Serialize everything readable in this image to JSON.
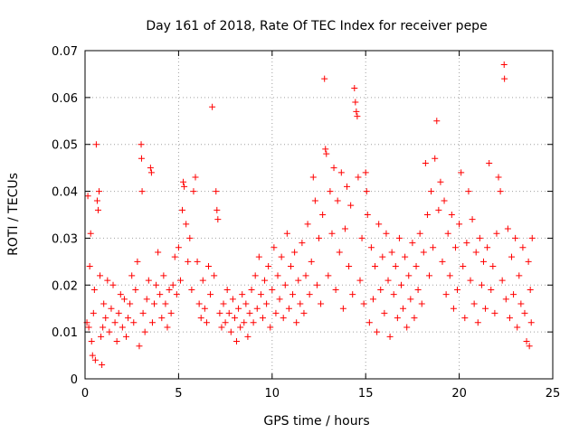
{
  "chart_data": {
    "type": "scatter",
    "title": "Day 161 of 2018, Rate Of TEC Index for receiver pepe",
    "xlabel": "GPS time / hours",
    "ylabel": "ROTI / TECUs",
    "xlim": [
      0,
      25
    ],
    "ylim": [
      0,
      0.07
    ],
    "xticks": [
      0,
      5,
      10,
      15,
      20,
      25
    ],
    "xtick_labels": [
      "0",
      "5",
      "10",
      "15",
      "20",
      "25"
    ],
    "yticks": [
      0,
      0.01,
      0.02,
      0.03,
      0.04,
      0.05,
      0.06,
      0.07
    ],
    "ytick_labels": [
      "0",
      "0.01",
      "0.02",
      "0.03",
      "0.04",
      "0.05",
      "0.06",
      "0.07"
    ],
    "grid": true,
    "marker": "+",
    "series": [
      {
        "name": "pepe",
        "color": "#ff0000",
        "marker": "+",
        "points": [
          [
            0.1,
            0.012
          ],
          [
            0.15,
            0.039
          ],
          [
            0.2,
            0.011
          ],
          [
            0.25,
            0.024
          ],
          [
            0.3,
            0.031
          ],
          [
            0.35,
            0.008
          ],
          [
            0.4,
            0.005
          ],
          [
            0.45,
            0.014
          ],
          [
            0.5,
            0.019
          ],
          [
            0.55,
            0.004
          ],
          [
            0.6,
            0.05
          ],
          [
            0.65,
            0.038
          ],
          [
            0.7,
            0.036
          ],
          [
            0.75,
            0.04
          ],
          [
            0.8,
            0.022
          ],
          [
            0.85,
            0.009
          ],
          [
            0.9,
            0.003
          ],
          [
            0.95,
            0.011
          ],
          [
            1.0,
            0.016
          ],
          [
            1.1,
            0.013
          ],
          [
            1.2,
            0.021
          ],
          [
            1.3,
            0.01
          ],
          [
            1.4,
            0.015
          ],
          [
            1.5,
            0.02
          ],
          [
            1.6,
            0.012
          ],
          [
            1.7,
            0.008
          ],
          [
            1.8,
            0.014
          ],
          [
            1.9,
            0.018
          ],
          [
            2.0,
            0.011
          ],
          [
            2.1,
            0.017
          ],
          [
            2.2,
            0.009
          ],
          [
            2.3,
            0.013
          ],
          [
            2.4,
            0.016
          ],
          [
            2.5,
            0.022
          ],
          [
            2.6,
            0.012
          ],
          [
            2.7,
            0.019
          ],
          [
            2.8,
            0.025
          ],
          [
            2.9,
            0.007
          ],
          [
            3.0,
            0.05
          ],
          [
            3.02,
            0.047
          ],
          [
            3.05,
            0.04
          ],
          [
            3.1,
            0.014
          ],
          [
            3.2,
            0.01
          ],
          [
            3.3,
            0.017
          ],
          [
            3.4,
            0.021
          ],
          [
            3.5,
            0.045
          ],
          [
            3.55,
            0.044
          ],
          [
            3.6,
            0.012
          ],
          [
            3.7,
            0.016
          ],
          [
            3.8,
            0.02
          ],
          [
            3.9,
            0.027
          ],
          [
            4.0,
            0.018
          ],
          [
            4.1,
            0.013
          ],
          [
            4.2,
            0.022
          ],
          [
            4.3,
            0.016
          ],
          [
            4.4,
            0.011
          ],
          [
            4.5,
            0.019
          ],
          [
            4.6,
            0.014
          ],
          [
            4.7,
            0.02
          ],
          [
            4.8,
            0.026
          ],
          [
            4.9,
            0.018
          ],
          [
            5.0,
            0.028
          ],
          [
            5.1,
            0.021
          ],
          [
            5.2,
            0.036
          ],
          [
            5.25,
            0.042
          ],
          [
            5.3,
            0.041
          ],
          [
            5.4,
            0.033
          ],
          [
            5.5,
            0.025
          ],
          [
            5.6,
            0.03
          ],
          [
            5.7,
            0.019
          ],
          [
            5.8,
            0.04
          ],
          [
            5.9,
            0.043
          ],
          [
            6.0,
            0.025
          ],
          [
            6.1,
            0.016
          ],
          [
            6.2,
            0.013
          ],
          [
            6.3,
            0.021
          ],
          [
            6.4,
            0.015
          ],
          [
            6.5,
            0.012
          ],
          [
            6.6,
            0.024
          ],
          [
            6.7,
            0.018
          ],
          [
            6.8,
            0.058
          ],
          [
            6.9,
            0.022
          ],
          [
            7.0,
            0.04
          ],
          [
            7.05,
            0.036
          ],
          [
            7.1,
            0.034
          ],
          [
            7.2,
            0.014
          ],
          [
            7.3,
            0.011
          ],
          [
            7.4,
            0.016
          ],
          [
            7.5,
            0.012
          ],
          [
            7.6,
            0.019
          ],
          [
            7.7,
            0.014
          ],
          [
            7.8,
            0.01
          ],
          [
            7.9,
            0.017
          ],
          [
            8.0,
            0.013
          ],
          [
            8.1,
            0.008
          ],
          [
            8.2,
            0.015
          ],
          [
            8.3,
            0.011
          ],
          [
            8.4,
            0.018
          ],
          [
            8.5,
            0.012
          ],
          [
            8.6,
            0.016
          ],
          [
            8.7,
            0.009
          ],
          [
            8.8,
            0.014
          ],
          [
            8.9,
            0.019
          ],
          [
            9.0,
            0.012
          ],
          [
            9.1,
            0.022
          ],
          [
            9.2,
            0.015
          ],
          [
            9.3,
            0.026
          ],
          [
            9.4,
            0.018
          ],
          [
            9.5,
            0.013
          ],
          [
            9.6,
            0.021
          ],
          [
            9.7,
            0.016
          ],
          [
            9.8,
            0.024
          ],
          [
            9.9,
            0.011
          ],
          [
            10.0,
            0.019
          ],
          [
            10.1,
            0.028
          ],
          [
            10.2,
            0.014
          ],
          [
            10.3,
            0.022
          ],
          [
            10.4,
            0.017
          ],
          [
            10.5,
            0.026
          ],
          [
            10.6,
            0.013
          ],
          [
            10.7,
            0.02
          ],
          [
            10.8,
            0.031
          ],
          [
            10.9,
            0.015
          ],
          [
            11.0,
            0.024
          ],
          [
            11.1,
            0.018
          ],
          [
            11.2,
            0.027
          ],
          [
            11.3,
            0.012
          ],
          [
            11.4,
            0.021
          ],
          [
            11.5,
            0.016
          ],
          [
            11.6,
            0.029
          ],
          [
            11.7,
            0.014
          ],
          [
            11.8,
            0.022
          ],
          [
            11.9,
            0.033
          ],
          [
            12.0,
            0.018
          ],
          [
            12.1,
            0.025
          ],
          [
            12.2,
            0.043
          ],
          [
            12.3,
            0.038
          ],
          [
            12.4,
            0.02
          ],
          [
            12.5,
            0.03
          ],
          [
            12.6,
            0.016
          ],
          [
            12.7,
            0.035
          ],
          [
            12.8,
            0.064
          ],
          [
            12.85,
            0.049
          ],
          [
            12.9,
            0.048
          ],
          [
            13.0,
            0.022
          ],
          [
            13.1,
            0.04
          ],
          [
            13.2,
            0.031
          ],
          [
            13.3,
            0.045
          ],
          [
            13.4,
            0.019
          ],
          [
            13.5,
            0.038
          ],
          [
            13.6,
            0.027
          ],
          [
            13.7,
            0.044
          ],
          [
            13.8,
            0.015
          ],
          [
            13.9,
            0.032
          ],
          [
            14.0,
            0.041
          ],
          [
            14.1,
            0.024
          ],
          [
            14.2,
            0.037
          ],
          [
            14.3,
            0.018
          ],
          [
            14.4,
            0.062
          ],
          [
            14.45,
            0.059
          ],
          [
            14.5,
            0.057
          ],
          [
            14.55,
            0.056
          ],
          [
            14.6,
            0.043
          ],
          [
            14.7,
            0.021
          ],
          [
            14.8,
            0.03
          ],
          [
            14.9,
            0.016
          ],
          [
            15.0,
            0.044
          ],
          [
            15.05,
            0.04
          ],
          [
            15.1,
            0.035
          ],
          [
            15.2,
            0.012
          ],
          [
            15.3,
            0.028
          ],
          [
            15.4,
            0.017
          ],
          [
            15.5,
            0.024
          ],
          [
            15.6,
            0.01
          ],
          [
            15.7,
            0.033
          ],
          [
            15.8,
            0.019
          ],
          [
            15.9,
            0.026
          ],
          [
            16.0,
            0.014
          ],
          [
            16.1,
            0.031
          ],
          [
            16.2,
            0.021
          ],
          [
            16.3,
            0.009
          ],
          [
            16.4,
            0.027
          ],
          [
            16.5,
            0.018
          ],
          [
            16.6,
            0.024
          ],
          [
            16.7,
            0.013
          ],
          [
            16.8,
            0.03
          ],
          [
            16.9,
            0.02
          ],
          [
            17.0,
            0.015
          ],
          [
            17.1,
            0.026
          ],
          [
            17.2,
            0.011
          ],
          [
            17.3,
            0.022
          ],
          [
            17.4,
            0.017
          ],
          [
            17.5,
            0.029
          ],
          [
            17.6,
            0.013
          ],
          [
            17.7,
            0.024
          ],
          [
            17.8,
            0.019
          ],
          [
            17.9,
            0.031
          ],
          [
            18.0,
            0.016
          ],
          [
            18.1,
            0.027
          ],
          [
            18.2,
            0.046
          ],
          [
            18.3,
            0.035
          ],
          [
            18.4,
            0.022
          ],
          [
            18.5,
            0.04
          ],
          [
            18.6,
            0.028
          ],
          [
            18.7,
            0.047
          ],
          [
            18.8,
            0.055
          ],
          [
            18.9,
            0.036
          ],
          [
            19.0,
            0.042
          ],
          [
            19.1,
            0.025
          ],
          [
            19.2,
            0.038
          ],
          [
            19.3,
            0.018
          ],
          [
            19.4,
            0.031
          ],
          [
            19.5,
            0.022
          ],
          [
            19.6,
            0.035
          ],
          [
            19.7,
            0.015
          ],
          [
            19.8,
            0.028
          ],
          [
            19.9,
            0.019
          ],
          [
            20.0,
            0.033
          ],
          [
            20.1,
            0.044
          ],
          [
            20.2,
            0.024
          ],
          [
            20.3,
            0.013
          ],
          [
            20.4,
            0.029
          ],
          [
            20.5,
            0.04
          ],
          [
            20.6,
            0.021
          ],
          [
            20.7,
            0.034
          ],
          [
            20.8,
            0.016
          ],
          [
            20.9,
            0.027
          ],
          [
            21.0,
            0.012
          ],
          [
            21.1,
            0.03
          ],
          [
            21.2,
            0.02
          ],
          [
            21.3,
            0.025
          ],
          [
            21.4,
            0.015
          ],
          [
            21.5,
            0.028
          ],
          [
            21.6,
            0.046
          ],
          [
            21.7,
            0.019
          ],
          [
            21.8,
            0.024
          ],
          [
            21.9,
            0.014
          ],
          [
            22.0,
            0.031
          ],
          [
            22.1,
            0.043
          ],
          [
            22.2,
            0.04
          ],
          [
            22.3,
            0.021
          ],
          [
            22.4,
            0.067
          ],
          [
            22.42,
            0.064
          ],
          [
            22.5,
            0.017
          ],
          [
            22.6,
            0.032
          ],
          [
            22.7,
            0.013
          ],
          [
            22.8,
            0.026
          ],
          [
            22.9,
            0.018
          ],
          [
            23.0,
            0.03
          ],
          [
            23.1,
            0.011
          ],
          [
            23.2,
            0.022
          ],
          [
            23.3,
            0.016
          ],
          [
            23.4,
            0.028
          ],
          [
            23.5,
            0.014
          ],
          [
            23.6,
            0.008
          ],
          [
            23.7,
            0.025
          ],
          [
            23.75,
            0.007
          ],
          [
            23.8,
            0.019
          ],
          [
            23.85,
            0.012
          ],
          [
            23.9,
            0.03
          ]
        ]
      }
    ]
  }
}
